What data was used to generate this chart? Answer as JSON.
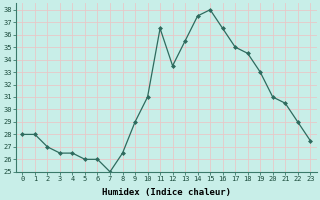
{
  "x": [
    0,
    1,
    2,
    3,
    4,
    5,
    6,
    7,
    8,
    9,
    10,
    11,
    12,
    13,
    14,
    15,
    16,
    17,
    18,
    19,
    20,
    21,
    22,
    23
  ],
  "y": [
    28.0,
    28.0,
    27.0,
    26.5,
    26.5,
    26.0,
    26.0,
    25.0,
    26.5,
    29.0,
    31.0,
    36.5,
    33.5,
    35.5,
    37.5,
    38.0,
    36.5,
    35.0,
    34.5,
    33.0,
    31.0,
    30.5,
    29.0,
    27.5
  ],
  "title": "",
  "xlabel": "Humidex (Indice chaleur)",
  "ylabel": "",
  "ylim": [
    25,
    38.5
  ],
  "yticks": [
    25,
    26,
    27,
    28,
    29,
    30,
    31,
    32,
    33,
    34,
    35,
    36,
    37,
    38
  ],
  "xticks": [
    0,
    1,
    2,
    3,
    4,
    5,
    6,
    7,
    8,
    9,
    10,
    11,
    12,
    13,
    14,
    15,
    16,
    17,
    18,
    19,
    20,
    21,
    22,
    23
  ],
  "line_color": "#2e6b5e",
  "marker": "D",
  "marker_size": 2.0,
  "bg_color": "#c8eee8",
  "grid_color": "#e8c8c8",
  "font_family": "monospace",
  "tick_fontsize": 5.0,
  "xlabel_fontsize": 6.5
}
